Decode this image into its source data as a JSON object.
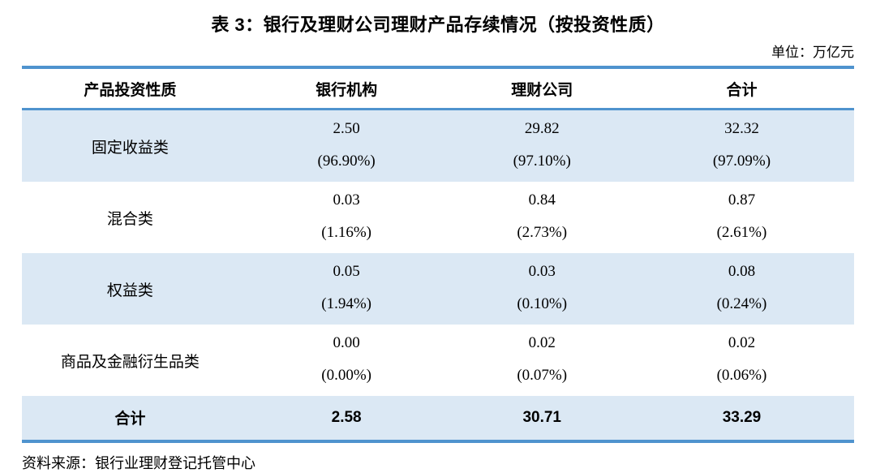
{
  "title": "表 3：银行及理财公司理财产品存续情况（按投资性质）",
  "unit_label": "单位：万亿元",
  "table": {
    "columns": [
      "产品投资性质",
      "银行机构",
      "理财公司",
      "合计"
    ],
    "rows": [
      {
        "label": "固定收益类",
        "values": [
          "2.50",
          "29.82",
          "32.32"
        ],
        "pcts": [
          "(96.90%)",
          "(97.10%)",
          "(97.09%)"
        ]
      },
      {
        "label": "混合类",
        "values": [
          "0.03",
          "0.84",
          "0.87"
        ],
        "pcts": [
          "(1.16%)",
          "(2.73%)",
          "(2.61%)"
        ]
      },
      {
        "label": "权益类",
        "values": [
          "0.05",
          "0.03",
          "0.08"
        ],
        "pcts": [
          "(1.94%)",
          "(0.10%)",
          "(0.24%)"
        ]
      },
      {
        "label": "商品及金融衍生品类",
        "values": [
          "0.00",
          "0.02",
          "0.02"
        ],
        "pcts": [
          "(0.00%)",
          "(0.07%)",
          "(0.06%)"
        ]
      }
    ],
    "total_row": {
      "label": "合计",
      "values": [
        "2.58",
        "30.71",
        "33.29"
      ]
    }
  },
  "source_note": "资料来源：银行业理财登记托管中心",
  "colors": {
    "accent_border": "#4f93ce",
    "row_shade": "#dbe8f4"
  }
}
